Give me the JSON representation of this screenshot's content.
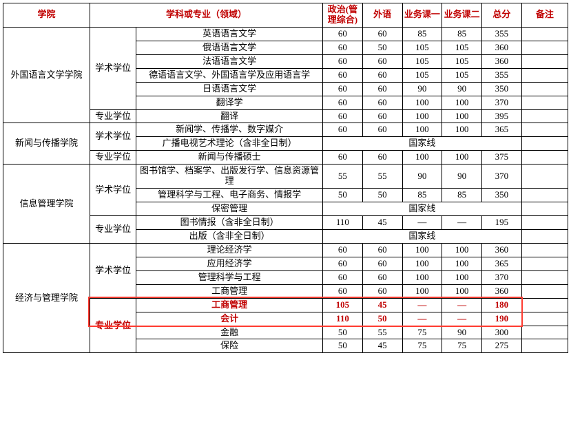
{
  "headers": {
    "school": "学院",
    "major": "学科或专业（领域）",
    "politics": "政治(管理综合)",
    "foreign": "外语",
    "subj1": "业务课一",
    "subj2": "业务课二",
    "total": "总分",
    "remark": "备注"
  },
  "national_line": "国家线",
  "dash": "—",
  "schools": [
    {
      "name": "外国语言文学学院",
      "degrees": [
        {
          "type": "学术学位",
          "rows": [
            {
              "major": "英语语言文学",
              "c": [
                "60",
                "60",
                "85",
                "85",
                "355"
              ]
            },
            {
              "major": "俄语语言文学",
              "c": [
                "60",
                "50",
                "105",
                "105",
                "360"
              ]
            },
            {
              "major": "法语语言文学",
              "c": [
                "60",
                "60",
                "105",
                "105",
                "360"
              ]
            },
            {
              "major": "德语语言文学、外国语言学及应用语言学",
              "c": [
                "60",
                "60",
                "105",
                "105",
                "355"
              ]
            },
            {
              "major": "日语语言文学",
              "c": [
                "60",
                "60",
                "90",
                "90",
                "350"
              ]
            },
            {
              "major": "翻译学",
              "c": [
                "60",
                "60",
                "100",
                "100",
                "370"
              ]
            }
          ]
        },
        {
          "type": "专业学位",
          "rows": [
            {
              "major": "翻译",
              "c": [
                "60",
                "60",
                "100",
                "100",
                "395"
              ]
            }
          ]
        }
      ]
    },
    {
      "name": "新闻与传播学院",
      "degrees": [
        {
          "type": "学术学位",
          "rows": [
            {
              "major": "新闻学、传播学、数字媒介",
              "c": [
                "60",
                "60",
                "100",
                "100",
                "365"
              ]
            },
            {
              "major": "广播电视艺术理论（含非全日制）",
              "national": true
            }
          ]
        },
        {
          "type": "专业学位",
          "rows": [
            {
              "major": "新闻与传播硕士",
              "c": [
                "60",
                "60",
                "100",
                "100",
                "375"
              ]
            }
          ]
        }
      ]
    },
    {
      "name": "信息管理学院",
      "degrees": [
        {
          "type": "学术学位",
          "rows": [
            {
              "major": "图书馆学、档案学、出版发行学、信息资源管理",
              "c": [
                "55",
                "55",
                "90",
                "90",
                "370"
              ]
            },
            {
              "major": "管理科学与工程、电子商务、情报学",
              "c": [
                "50",
                "50",
                "85",
                "85",
                "350"
              ]
            },
            {
              "major": "保密管理",
              "national": true
            }
          ]
        },
        {
          "type": "专业学位",
          "rows": [
            {
              "major": "图书情报（含非全日制）",
              "c": [
                "110",
                "45",
                "—",
                "—",
                "195"
              ]
            },
            {
              "major": "出版（含非全日制）",
              "national": true
            }
          ]
        }
      ]
    },
    {
      "name": "经济与管理学院",
      "degrees": [
        {
          "type": "学术学位",
          "rows": [
            {
              "major": "理论经济学",
              "c": [
                "60",
                "60",
                "100",
                "100",
                "360"
              ]
            },
            {
              "major": "应用经济学",
              "c": [
                "60",
                "60",
                "100",
                "100",
                "365"
              ]
            },
            {
              "major": "管理科学与工程",
              "c": [
                "60",
                "60",
                "100",
                "100",
                "370"
              ]
            },
            {
              "major": "工商管理",
              "c": [
                "60",
                "60",
                "100",
                "100",
                "360"
              ]
            }
          ]
        },
        {
          "type": "专业学位",
          "rows": [
            {
              "major": "工商管理",
              "c": [
                "105",
                "45",
                "—",
                "—",
                "180"
              ],
              "hl": true
            },
            {
              "major": "会计",
              "c": [
                "110",
                "50",
                "—",
                "—",
                "190"
              ],
              "hl": true
            },
            {
              "major": "金融",
              "c": [
                "50",
                "55",
                "75",
                "90",
                "300"
              ]
            },
            {
              "major": "保险",
              "c": [
                "50",
                "45",
                "75",
                "75",
                "275"
              ]
            }
          ]
        }
      ]
    }
  ],
  "highlight_box": {
    "color": "#ff3b30"
  }
}
